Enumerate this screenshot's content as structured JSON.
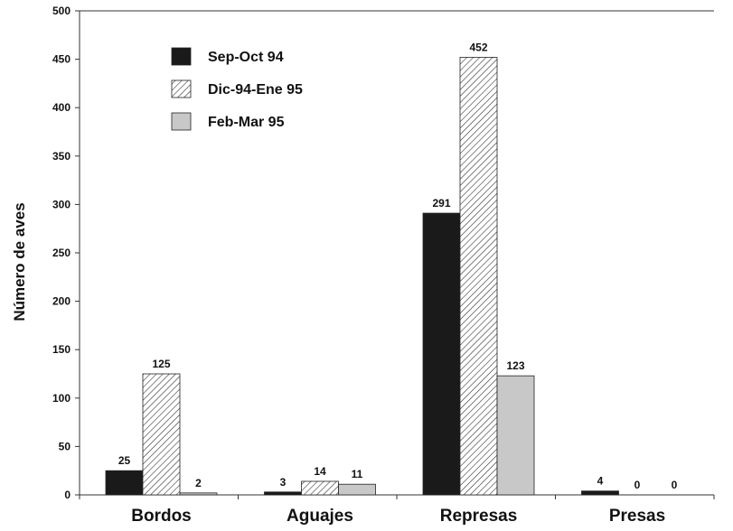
{
  "chart_data": {
    "type": "bar",
    "title": "",
    "xlabel": "",
    "ylabel": "Número de aves",
    "ylim": [
      0,
      500
    ],
    "yticks": [
      0,
      50,
      100,
      150,
      200,
      250,
      300,
      350,
      400,
      450,
      500
    ],
    "grid": false,
    "legend_position": "top-left",
    "categories": [
      "Bordos",
      "Aguajes",
      "Represas",
      "Presas"
    ],
    "series": [
      {
        "name": "Sep-Oct 94",
        "values": [
          25,
          3,
          291,
          4
        ],
        "color": "#1a1a1a",
        "pattern": "solid"
      },
      {
        "name": "Dic-94-Ene 95",
        "values": [
          125,
          14,
          452,
          0
        ],
        "color": "#ffffff",
        "pattern": "diagonal-hatch"
      },
      {
        "name": "Feb-Mar 95",
        "values": [
          2,
          11,
          123,
          0
        ],
        "color": "#c8c8c8",
        "pattern": "solid"
      }
    ]
  }
}
